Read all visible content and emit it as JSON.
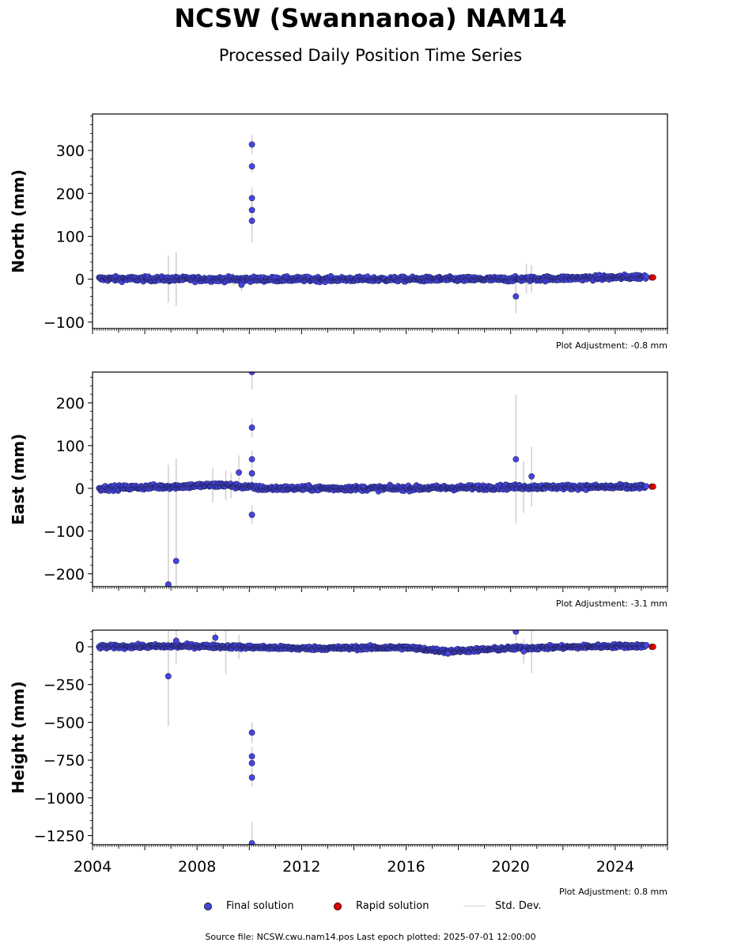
{
  "header": {
    "title": "NCSW (Swannanoa) NAM14",
    "subtitle": "Processed Daily Position Time Series"
  },
  "legend": {
    "final": "Final solution",
    "rapid": "Rapid solution",
    "std": "Std. Dev."
  },
  "footer": "Source file: NCSW.cwu.nam14.pos  Last epoch plotted: 2025-07-01 12:00:00",
  "colors": {
    "final": "#4646e6",
    "rapid": "#e00000",
    "std": "#cfcfcf",
    "outline": "#1a1a40"
  },
  "chart_data": [
    {
      "type": "scatter",
      "ylabel": "North (mm)",
      "xlim": [
        2004.0,
        2026.0
      ],
      "ylim": [
        -115,
        385
      ],
      "yticks": [
        -100,
        0,
        100,
        200,
        300
      ],
      "adjustment": "Plot Adjustment: -0.8 mm",
      "noise": 4,
      "baseline": [
        [
          2004.25,
          1
        ],
        [
          2009.0,
          0
        ],
        [
          2015.0,
          0
        ],
        [
          2020.0,
          0
        ],
        [
          2024.0,
          4
        ],
        [
          2025.2,
          6
        ]
      ],
      "outliers": [
        {
          "x": 2010.1,
          "y": 314,
          "err": 22
        },
        {
          "x": 2010.1,
          "y": 263,
          "err": 15
        },
        {
          "x": 2010.1,
          "y": 189,
          "err": 25
        },
        {
          "x": 2010.1,
          "y": 161,
          "err": 20
        },
        {
          "x": 2010.1,
          "y": 136,
          "err": 50
        },
        {
          "x": 2009.7,
          "y": -13,
          "err": 15
        },
        {
          "x": 2020.2,
          "y": -40,
          "err": 40
        }
      ],
      "std_spikes": [
        {
          "x": 2006.9,
          "err": 55
        },
        {
          "x": 2007.2,
          "err": 62
        },
        {
          "x": 2009.4,
          "err": 15
        },
        {
          "x": 2020.6,
          "err": 35
        },
        {
          "x": 2020.8,
          "err": 32
        }
      ],
      "rapid": [
        {
          "x": 2025.4,
          "y": 4
        },
        {
          "x": 2025.45,
          "y": 4
        }
      ]
    },
    {
      "type": "scatter",
      "ylabel": "East (mm)",
      "xlim": [
        2004.0,
        2026.0
      ],
      "ylim": [
        -230,
        272
      ],
      "yticks": [
        -200,
        -100,
        0,
        100,
        200
      ],
      "adjustment": "Plot Adjustment: -3.1 mm",
      "noise": 4,
      "baseline": [
        [
          2004.25,
          0
        ],
        [
          2007.5,
          5
        ],
        [
          2009.0,
          8
        ],
        [
          2010.5,
          0
        ],
        [
          2016.0,
          0
        ],
        [
          2020.0,
          3
        ],
        [
          2025.2,
          3
        ]
      ],
      "outliers": [
        {
          "x": 2010.1,
          "y": 272,
          "err": 40
        },
        {
          "x": 2010.1,
          "y": 142,
          "err": 22
        },
        {
          "x": 2010.1,
          "y": 68,
          "err": 20
        },
        {
          "x": 2010.1,
          "y": 35,
          "err": 30
        },
        {
          "x": 2010.1,
          "y": -62,
          "err": 22
        },
        {
          "x": 2009.6,
          "y": 37,
          "err": 40
        },
        {
          "x": 2006.9,
          "y": -225,
          "err": 280
        },
        {
          "x": 2007.2,
          "y": -170,
          "err": 240
        },
        {
          "x": 2020.2,
          "y": 68,
          "err": 150
        },
        {
          "x": 2020.8,
          "y": 28,
          "err": 70
        }
      ],
      "std_spikes": [
        {
          "x": 2008.6,
          "err": 40
        },
        {
          "x": 2009.1,
          "err": 35
        },
        {
          "x": 2009.3,
          "err": 30
        },
        {
          "x": 2020.5,
          "err": 60
        }
      ],
      "rapid": [
        {
          "x": 2025.4,
          "y": 4
        },
        {
          "x": 2025.45,
          "y": 4
        }
      ]
    },
    {
      "type": "scatter",
      "ylabel": "Height (mm)",
      "xlim": [
        2004.0,
        2026.0
      ],
      "xticks": [
        2004,
        2008,
        2012,
        2016,
        2020,
        2024
      ],
      "ylim": [
        -1310,
        110
      ],
      "yticks": [
        -1250,
        -1000,
        -750,
        -500,
        -250,
        0
      ],
      "adjustment": "Plot Adjustment: 0.8 mm",
      "noise": 9,
      "baseline": [
        [
          2004.25,
          0
        ],
        [
          2008.0,
          5
        ],
        [
          2012.0,
          -10
        ],
        [
          2016.0,
          -5
        ],
        [
          2017.6,
          -30
        ],
        [
          2020.0,
          -10
        ],
        [
          2024.0,
          5
        ],
        [
          2025.2,
          5
        ]
      ],
      "outliers": [
        {
          "x": 2010.1,
          "y": -568,
          "err": 70
        },
        {
          "x": 2010.1,
          "y": -725,
          "err": 60
        },
        {
          "x": 2010.1,
          "y": -770,
          "err": 60
        },
        {
          "x": 2010.1,
          "y": -865,
          "err": 60
        },
        {
          "x": 2010.1,
          "y": -1300,
          "err": 140
        },
        {
          "x": 2006.9,
          "y": -195,
          "err": 330
        },
        {
          "x": 2007.2,
          "y": 40,
          "err": 150
        },
        {
          "x": 2008.7,
          "y": 60,
          "err": 40
        },
        {
          "x": 2017.6,
          "y": -45,
          "err": 20
        },
        {
          "x": 2020.2,
          "y": 100,
          "err": 60
        },
        {
          "x": 2020.5,
          "y": -30,
          "err": 80
        }
      ],
      "std_spikes": [
        {
          "x": 2009.1,
          "err": 180
        },
        {
          "x": 2009.6,
          "err": 80
        },
        {
          "x": 2020.8,
          "err": 170
        }
      ],
      "rapid": [
        {
          "x": 2025.4,
          "y": 0
        },
        {
          "x": 2025.45,
          "y": 0
        }
      ]
    }
  ]
}
